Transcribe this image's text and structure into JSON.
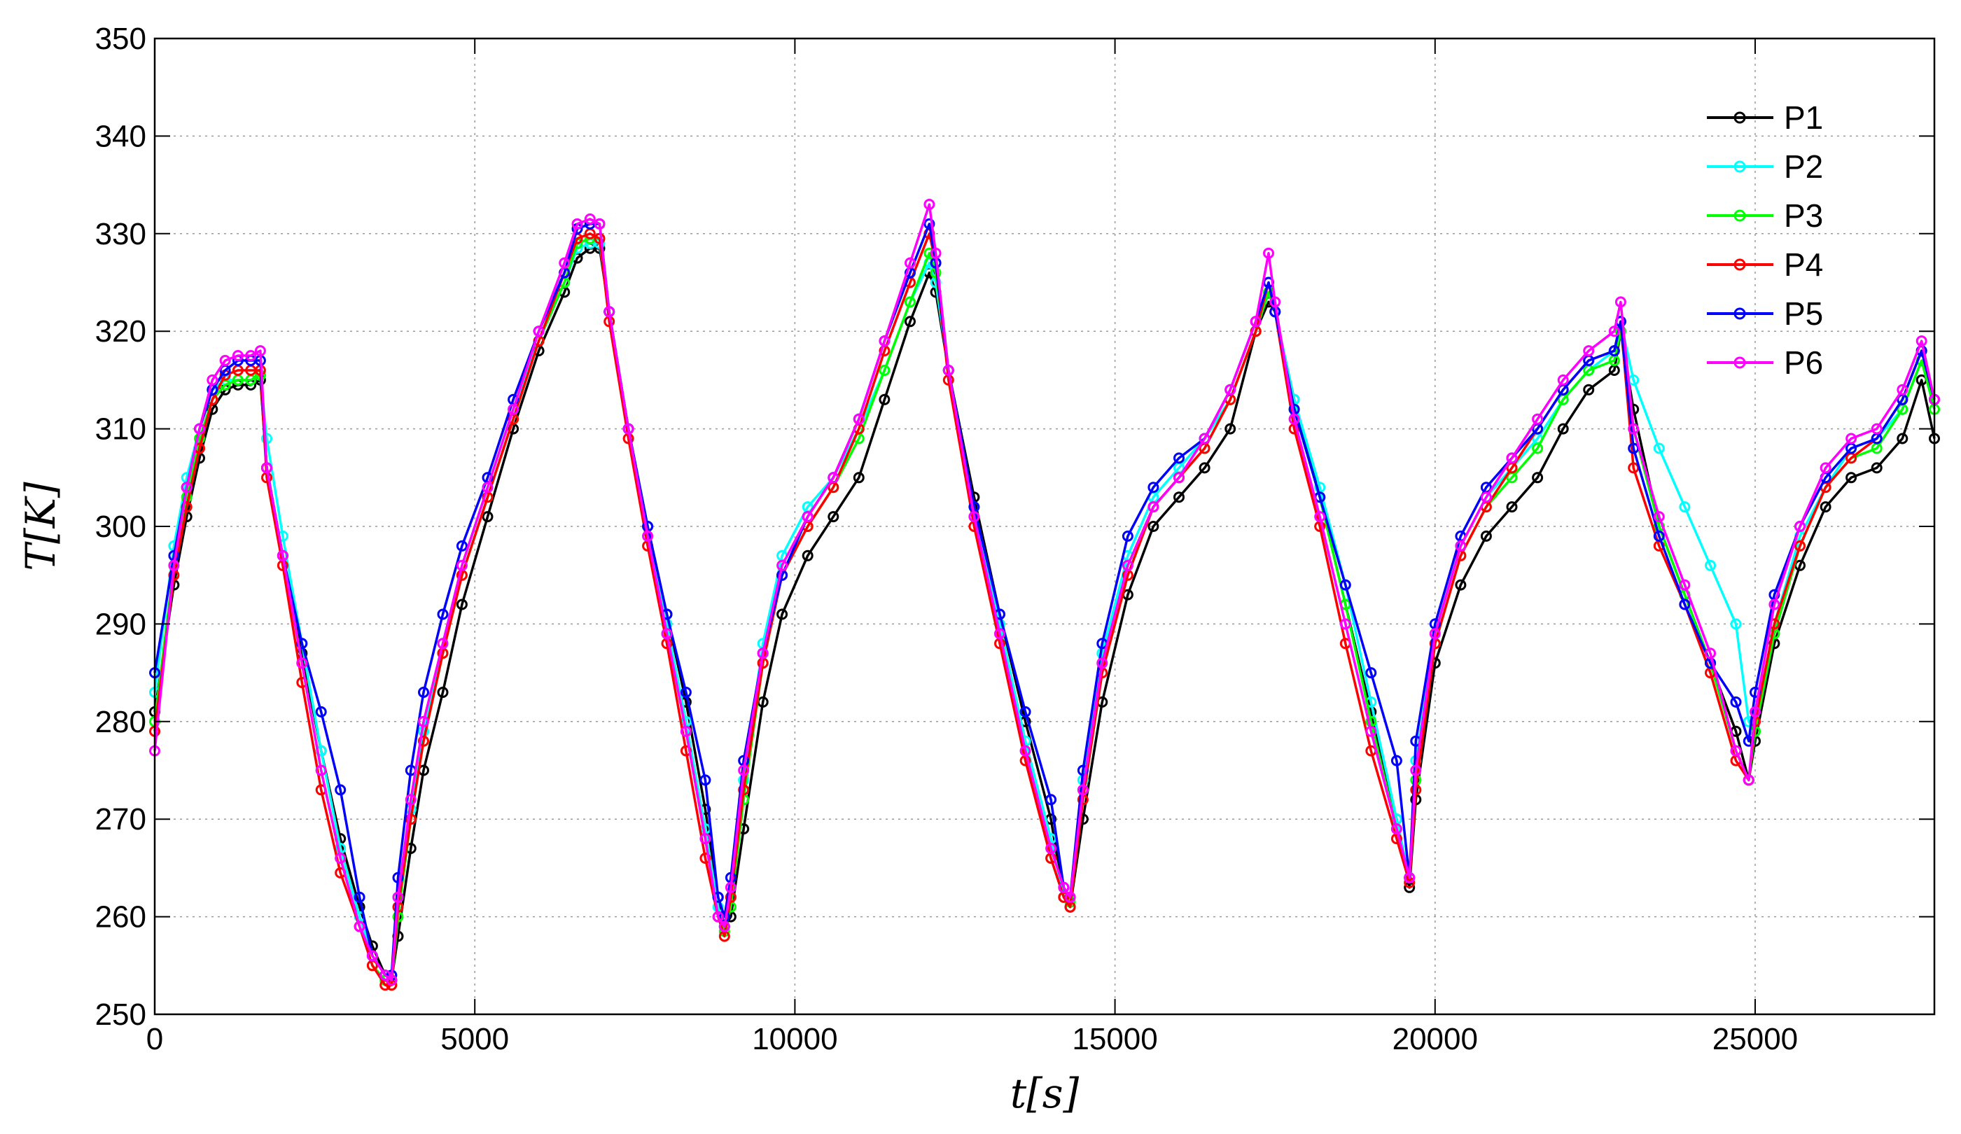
{
  "chart_data": {
    "type": "line",
    "xlabel": "t[s]",
    "ylabel": "T[K]",
    "xlim": [
      0,
      27800
    ],
    "ylim": [
      250,
      350
    ],
    "xticks": [
      0,
      5000,
      10000,
      15000,
      20000,
      25000
    ],
    "yticks": [
      250,
      260,
      270,
      280,
      290,
      300,
      310,
      320,
      330,
      340,
      350
    ],
    "grid": true,
    "legend_position": "top-right",
    "series": [
      {
        "name": "P1",
        "color": "#000000",
        "x": [
          0,
          300,
          500,
          700,
          900,
          1100,
          1300,
          1500,
          1650,
          1750,
          2000,
          2300,
          2600,
          2900,
          3200,
          3400,
          3600,
          3700,
          3800,
          4000,
          4200,
          4500,
          4800,
          5200,
          5600,
          6000,
          6400,
          6600,
          6800,
          6950,
          7100,
          7400,
          7700,
          8000,
          8300,
          8600,
          8800,
          8900,
          9000,
          9200,
          9500,
          9800,
          10200,
          10600,
          11000,
          11400,
          11800,
          12100,
          12200,
          12400,
          12800,
          13200,
          13600,
          14000,
          14200,
          14300,
          14500,
          14800,
          15200,
          15600,
          16000,
          16400,
          16800,
          17200,
          17400,
          17500,
          17800,
          18200,
          18600,
          19000,
          19400,
          19600,
          19700,
          20000,
          20400,
          20800,
          21200,
          21600,
          22000,
          22400,
          22800,
          22900,
          23100,
          23500,
          23900,
          24300,
          24700,
          24900,
          25000,
          25300,
          25700,
          26100,
          26500,
          26900,
          27300,
          27600,
          27800
        ],
        "y": [
          281,
          294,
          301,
          307,
          312,
          314,
          314.5,
          314.5,
          315,
          306,
          297,
          287,
          277,
          268,
          261,
          257,
          254,
          253.5,
          258,
          267,
          275,
          283,
          292,
          301,
          310,
          318,
          324,
          327.5,
          328.5,
          328.5,
          322,
          310,
          300,
          291,
          282,
          271,
          262,
          259,
          260,
          269,
          282,
          291,
          297,
          301,
          305,
          313,
          321,
          326,
          324,
          316,
          303,
          291,
          280,
          270,
          262,
          261,
          270,
          282,
          293,
          300,
          303,
          306,
          310,
          320,
          323,
          322,
          313,
          303,
          292,
          281,
          270,
          263,
          272,
          286,
          294,
          299,
          302,
          305,
          310,
          314,
          316,
          320,
          312,
          300,
          293,
          286,
          279,
          274,
          278,
          288,
          296,
          302,
          305,
          306,
          309,
          315,
          309
        ]
      },
      {
        "name": "P2",
        "color": "#00ffff",
        "x": [
          0,
          300,
          500,
          700,
          900,
          1100,
          1300,
          1500,
          1650,
          1750,
          2000,
          2300,
          2600,
          2900,
          3200,
          3400,
          3600,
          3700,
          3800,
          4000,
          4200,
          4500,
          4800,
          5200,
          5600,
          6000,
          6400,
          6600,
          6800,
          6950,
          7100,
          7400,
          7700,
          8000,
          8300,
          8600,
          8800,
          8900,
          9000,
          9200,
          9500,
          9800,
          10200,
          10600,
          11000,
          11400,
          11800,
          12100,
          12200,
          12400,
          12800,
          13200,
          13600,
          14000,
          14200,
          14300,
          14500,
          14800,
          15200,
          15600,
          16000,
          16400,
          16800,
          17200,
          17400,
          17500,
          17800,
          18200,
          18600,
          19000,
          19400,
          19600,
          19700,
          20000,
          20400,
          20800,
          21200,
          21600,
          22000,
          22400,
          22800,
          22900,
          23100,
          23500,
          23900,
          24300,
          24700,
          24900,
          25000,
          25300,
          25700,
          26100,
          26500,
          26900,
          27300,
          27600,
          27800
        ],
        "y": [
          283,
          298,
          305,
          310,
          314,
          315,
          315,
          315,
          315.5,
          309,
          299,
          288,
          277,
          267,
          260,
          256,
          254,
          254,
          262,
          271,
          279,
          288,
          296,
          304,
          312,
          319,
          325,
          328.5,
          329,
          329,
          322,
          310,
          300,
          290,
          280,
          269,
          261,
          259,
          262,
          274,
          288,
          297,
          302,
          305,
          310,
          316,
          323,
          327,
          325,
          316,
          302,
          290,
          278,
          268,
          262,
          262,
          274,
          287,
          297,
          303,
          306,
          309,
          313,
          320,
          324,
          322,
          313,
          304,
          294,
          282,
          270,
          264,
          276,
          289,
          298,
          303,
          306,
          309,
          313,
          316,
          318,
          321,
          315,
          308,
          302,
          296,
          290,
          280,
          279,
          290,
          299,
          304,
          308,
          309,
          312,
          317,
          313
        ]
      },
      {
        "name": "P3",
        "color": "#00ff00",
        "x": [
          0,
          300,
          500,
          700,
          900,
          1100,
          1300,
          1500,
          1650,
          1750,
          2000,
          2300,
          2600,
          2900,
          3200,
          3400,
          3600,
          3700,
          3800,
          4000,
          4200,
          4500,
          4800,
          5200,
          5600,
          6000,
          6400,
          6600,
          6800,
          6950,
          7100,
          7400,
          7700,
          8000,
          8300,
          8600,
          8800,
          8900,
          9000,
          9200,
          9500,
          9800,
          10200,
          10600,
          11000,
          11400,
          11800,
          12100,
          12200,
          12400,
          12800,
          13200,
          13600,
          14000,
          14200,
          14300,
          14500,
          14800,
          15200,
          15600,
          16000,
          16400,
          16800,
          17200,
          17400,
          17500,
          17800,
          18200,
          18600,
          19000,
          19400,
          19600,
          19700,
          20000,
          20400,
          20800,
          21200,
          21600,
          22000,
          22400,
          22800,
          22900,
          23100,
          23500,
          23900,
          24300,
          24700,
          24900,
          25000,
          25300,
          25700,
          26100,
          26500,
          26900,
          27300,
          27600,
          27800
        ],
        "y": [
          280,
          296,
          303,
          309,
          313,
          314.5,
          315,
          315,
          315.5,
          306,
          297,
          286,
          275,
          266,
          259,
          255,
          253.5,
          253,
          260,
          270,
          278,
          287,
          295,
          303,
          311,
          319,
          325,
          329,
          329.5,
          329.5,
          322,
          310,
          299,
          289,
          279,
          268,
          260,
          258.5,
          261,
          272,
          286,
          295,
          300,
          304,
          309,
          316,
          323,
          328,
          326,
          316,
          301,
          289,
          277,
          266,
          262,
          261.5,
          273,
          286,
          296,
          302,
          305,
          308,
          313,
          320,
          324,
          322,
          312,
          303,
          292,
          280,
          269,
          264,
          274,
          288,
          297,
          302,
          305,
          308,
          313,
          316,
          317,
          320,
          310,
          300,
          293,
          286,
          277,
          274,
          279,
          289,
          298,
          304,
          307,
          308,
          312,
          317,
          312
        ]
      },
      {
        "name": "P4",
        "color": "#ff0000",
        "x": [
          0,
          300,
          500,
          700,
          900,
          1100,
          1300,
          1500,
          1650,
          1750,
          2000,
          2300,
          2600,
          2900,
          3200,
          3400,
          3600,
          3700,
          3800,
          4000,
          4200,
          4500,
          4800,
          5200,
          5600,
          6000,
          6400,
          6600,
          6800,
          6950,
          7100,
          7400,
          7700,
          8000,
          8300,
          8600,
          8800,
          8900,
          9000,
          9200,
          9500,
          9800,
          10200,
          10600,
          11000,
          11400,
          11800,
          12100,
          12200,
          12400,
          12800,
          13200,
          13600,
          14000,
          14200,
          14300,
          14500,
          14800,
          15200,
          15600,
          16000,
          16400,
          16800,
          17200,
          17400,
          17500,
          17800,
          18200,
          18600,
          19000,
          19400,
          19600,
          19700,
          20000,
          20400,
          20800,
          21200,
          21600,
          22000,
          22400,
          22800,
          22900,
          23100,
          23500,
          23900,
          24300,
          24700,
          24900,
          25000,
          25300,
          25700,
          26100,
          26500,
          26900,
          27300,
          27600,
          27800
        ],
        "y": [
          279,
          295,
          302,
          308,
          313,
          315.5,
          316,
          316,
          316,
          305,
          296,
          284,
          273,
          264.5,
          259,
          255,
          253,
          253,
          261,
          270,
          278,
          287,
          295,
          303,
          311,
          319,
          326,
          329.5,
          330,
          329.5,
          321,
          309,
          298,
          288,
          277,
          266,
          260,
          258,
          262,
          273,
          286,
          295,
          300,
          304,
          310,
          318,
          325,
          330,
          327,
          315,
          300,
          288,
          276,
          266,
          262,
          261,
          272,
          285,
          295,
          302,
          305,
          308,
          313,
          320,
          325,
          322,
          310,
          300,
          288,
          277,
          268,
          263.5,
          273,
          288,
          297,
          302,
          306,
          310,
          314,
          317,
          318,
          321,
          306,
          298,
          292,
          285,
          276,
          274,
          280,
          290,
          298,
          304,
          307,
          309,
          313,
          318,
          313
        ]
      },
      {
        "name": "P5",
        "color": "#0000ff",
        "x": [
          0,
          300,
          500,
          700,
          900,
          1100,
          1300,
          1500,
          1650,
          1750,
          2000,
          2300,
          2600,
          2900,
          3200,
          3400,
          3600,
          3700,
          3800,
          4000,
          4200,
          4500,
          4800,
          5200,
          5600,
          6000,
          6400,
          6600,
          6800,
          6950,
          7100,
          7400,
          7700,
          8000,
          8300,
          8600,
          8800,
          8900,
          9000,
          9200,
          9500,
          9800,
          10200,
          10600,
          11000,
          11400,
          11800,
          12100,
          12200,
          12400,
          12800,
          13200,
          13600,
          14000,
          14200,
          14300,
          14500,
          14800,
          15200,
          15600,
          16000,
          16400,
          16800,
          17200,
          17400,
          17500,
          17800,
          18200,
          18600,
          19000,
          19400,
          19600,
          19700,
          20000,
          20400,
          20800,
          21200,
          21600,
          22000,
          22400,
          22800,
          22900,
          23100,
          23500,
          23900,
          24300,
          24700,
          24900,
          25000,
          25300,
          25700,
          26100,
          26500,
          26900,
          27300,
          27600,
          27800
        ],
        "y": [
          285,
          297,
          304,
          310,
          314,
          316,
          317,
          317,
          317,
          306,
          297,
          288,
          281,
          273,
          262,
          256,
          254,
          254,
          264,
          275,
          283,
          291,
          298,
          305,
          313,
          320,
          326,
          330.5,
          331,
          331,
          322,
          310,
          300,
          291,
          283,
          274,
          262,
          260,
          264,
          276,
          287,
          295,
          301,
          305,
          311,
          319,
          326,
          331,
          327,
          316,
          302,
          291,
          281,
          272,
          263,
          262,
          275,
          288,
          299,
          304,
          307,
          309,
          314,
          321,
          325,
          322,
          312,
          303,
          294,
          285,
          276,
          264,
          278,
          290,
          299,
          304,
          307,
          310,
          314,
          317,
          318,
          321,
          308,
          299,
          292,
          286,
          282,
          278,
          283,
          293,
          300,
          305,
          308,
          309,
          313,
          318,
          313
        ]
      },
      {
        "name": "P6",
        "color": "#ff00ff",
        "x": [
          0,
          300,
          500,
          700,
          900,
          1100,
          1300,
          1500,
          1650,
          1750,
          2000,
          2300,
          2600,
          2900,
          3200,
          3400,
          3600,
          3700,
          3800,
          4000,
          4200,
          4500,
          4800,
          5200,
          5600,
          6000,
          6400,
          6600,
          6800,
          6950,
          7100,
          7400,
          7700,
          8000,
          8300,
          8600,
          8800,
          8900,
          9000,
          9200,
          9500,
          9800,
          10200,
          10600,
          11000,
          11400,
          11800,
          12100,
          12200,
          12400,
          12800,
          13200,
          13600,
          14000,
          14200,
          14300,
          14500,
          14800,
          15200,
          15600,
          16000,
          16400,
          16800,
          17200,
          17400,
          17500,
          17800,
          18200,
          18600,
          19000,
          19400,
          19600,
          19700,
          20000,
          20400,
          20800,
          21200,
          21600,
          22000,
          22400,
          22800,
          22900,
          23100,
          23500,
          23900,
          24300,
          24700,
          24900,
          25000,
          25300,
          25700,
          26100,
          26500,
          26900,
          27300,
          27600,
          27800
        ],
        "y": [
          277,
          296,
          304,
          310,
          315,
          317,
          317.5,
          317.5,
          318,
          306,
          297,
          286,
          275,
          266,
          259,
          256,
          254,
          253.5,
          262,
          272,
          280,
          288,
          296,
          304,
          312,
          320,
          327,
          331,
          331.5,
          331,
          322,
          310,
          299,
          289,
          279,
          268,
          260,
          259,
          263,
          275,
          287,
          296,
          301,
          305,
          311,
          319,
          327,
          333,
          328,
          316,
          301,
          289,
          277,
          267,
          263,
          262,
          273,
          286,
          296,
          302,
          305,
          309,
          314,
          321,
          328,
          323,
          311,
          301,
          290,
          279,
          269,
          264,
          275,
          289,
          298,
          303,
          307,
          311,
          315,
          318,
          320,
          323,
          310,
          301,
          294,
          287,
          277,
          274,
          281,
          292,
          300,
          306,
          309,
          310,
          314,
          319,
          313
        ]
      }
    ]
  }
}
